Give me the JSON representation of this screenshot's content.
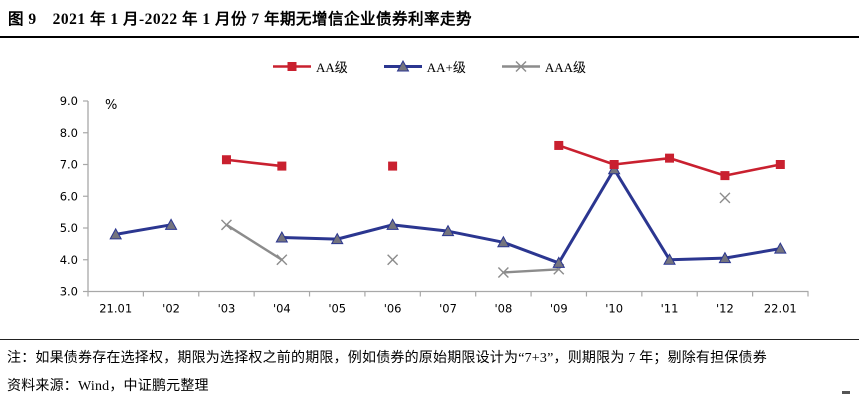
{
  "title": "图 9　2021 年 1 月-2022 年 1 月份 7 年期无增信企业债券利率走势",
  "notes": {
    "line1": "注：如果债券存在选择权，期限为选择权之前的期限，例如债券的原始期限设计为“7+3”，则期限为 7 年；剔除有担保债券",
    "line2": "资料来源：Wind，中证鹏元整理"
  },
  "chart_data": {
    "type": "line",
    "title": "2021年1月-2022年1月份7年期无增信企业债券利率走势",
    "unit_label": "%",
    "categories": [
      "21.01",
      "'02",
      "'03",
      "'04",
      "'05",
      "'06",
      "'07",
      "'08",
      "'09",
      "'10",
      "'11",
      "'12",
      "22.01"
    ],
    "series": [
      {
        "name": "AA级",
        "color": "#C9202F",
        "marker": "square",
        "line_width": 2.6,
        "values": [
          null,
          null,
          7.15,
          6.95,
          null,
          6.95,
          null,
          null,
          7.6,
          7.0,
          7.2,
          6.65,
          7.0
        ]
      },
      {
        "name": "AA+级",
        "color": "#2B3690",
        "marker": "triangle",
        "marker_fill": "#74747E",
        "line_width": 3,
        "values": [
          4.8,
          5.1,
          null,
          4.7,
          4.65,
          5.1,
          4.9,
          4.55,
          3.9,
          6.85,
          4.0,
          4.05,
          4.35
        ]
      },
      {
        "name": "AAA级",
        "color": "#8C8C8C",
        "marker": "x",
        "line_width": 2.4,
        "values": [
          null,
          null,
          5.1,
          4.0,
          null,
          4.0,
          null,
          3.6,
          3.7,
          null,
          null,
          5.95,
          null
        ]
      }
    ],
    "ylim": [
      3.0,
      9.0
    ],
    "ytick_step": 1.0,
    "ytick_labels": [
      "3.0",
      "4.0",
      "5.0",
      "6.0",
      "7.0",
      "8.0",
      "9.0"
    ],
    "grid": false,
    "legend_position": "top-center",
    "axis_color": "#A8A8A8",
    "tick_label_color": "#000000"
  }
}
